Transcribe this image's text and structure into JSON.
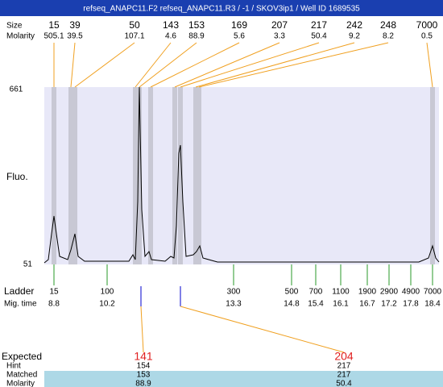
{
  "header": {
    "title": "refseq_ANAPC11.F2  refseq_ANAPC11.R3 / -1 / SKOV3ip1 / Well ID 1689535"
  },
  "peak_table": {
    "size_label": "Size",
    "molarity_label": "Molarity",
    "sizes": [
      "15",
      "39",
      "50",
      "143",
      "153",
      "169",
      "207",
      "217",
      "242",
      "248",
      "7000"
    ],
    "molarities": [
      "505.1",
      "39.5",
      "107.1",
      "4.6",
      "88.9",
      "5.6",
      "3.3",
      "50.4",
      "9.2",
      "8.2",
      "0.5"
    ]
  },
  "plot": {
    "y_top_label": "661",
    "y_bottom_label": "51",
    "y_axis_label": "Fluo."
  },
  "ladder": {
    "label": "Ladder",
    "mig_time_label": "Mig. time",
    "sizes": [
      "15",
      "100",
      "300",
      "500",
      "700",
      "1100",
      "1900",
      "2900",
      "4900",
      "7000"
    ],
    "mig_times": [
      "8.8",
      "10.2",
      "13.3",
      "14.8",
      "15.4",
      "16.1",
      "16.7",
      "17.2",
      "17.8",
      "18.4"
    ]
  },
  "expected_table": {
    "row_labels": [
      "Expected",
      "Hint",
      "Matched",
      "Molarity"
    ],
    "columns": [
      [
        "141",
        "154",
        "153",
        "88.9"
      ],
      [
        "204",
        "217",
        "217",
        "50.4"
      ]
    ]
  }
}
